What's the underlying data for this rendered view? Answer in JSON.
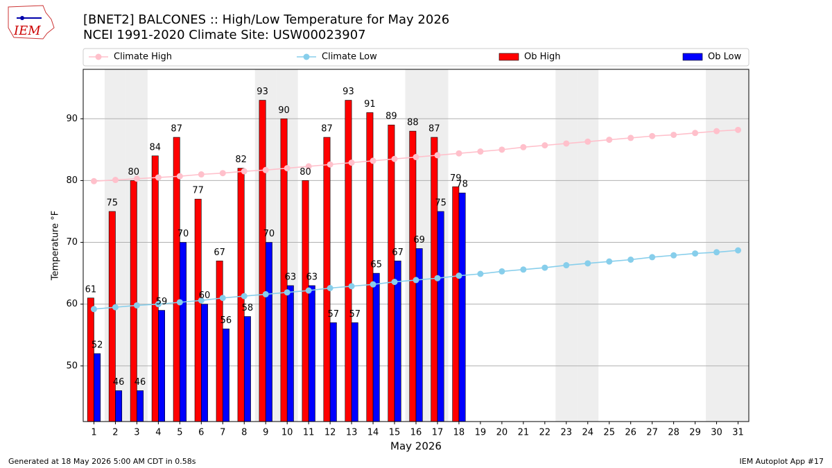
{
  "chart_data": {
    "type": "bar",
    "logo_text": "IEM",
    "title": "[BNET2] BALCONES :: High/Low Temperature for May 2026",
    "subtitle": "NCEI 1991-2020 Climate Site: USW00023907",
    "x_label": "May 2026",
    "y_label": "Temperature °F",
    "footer_left": "Generated at 18 May 2026 5:00 AM CDT in 0.58s",
    "footer_right": "IEM Autoplot App #17",
    "x": [
      1,
      2,
      3,
      4,
      5,
      6,
      7,
      8,
      9,
      10,
      11,
      12,
      13,
      14,
      15,
      16,
      17,
      18,
      19,
      20,
      21,
      22,
      23,
      24,
      25,
      26,
      27,
      28,
      29,
      30,
      31
    ],
    "xlim": [
      0.5,
      31.5
    ],
    "xticks": [
      1,
      2,
      3,
      4,
      5,
      6,
      7,
      8,
      9,
      10,
      11,
      12,
      13,
      14,
      15,
      16,
      17,
      18,
      19,
      20,
      21,
      22,
      23,
      24,
      25,
      26,
      27,
      28,
      29,
      30,
      31
    ],
    "ylim": [
      41,
      98
    ],
    "yticks": [
      50,
      60,
      70,
      80,
      90
    ],
    "grid": true,
    "shaded_days": [
      2,
      3,
      9,
      10,
      16,
      17,
      23,
      24,
      30,
      31
    ],
    "shade_color": "#eeeeee",
    "series": [
      {
        "name": "Climate High",
        "type": "line",
        "color": "#ffc0cb",
        "values": [
          79.9,
          80.1,
          80.3,
          80.5,
          80.7,
          81.0,
          81.2,
          81.5,
          81.7,
          82.0,
          82.3,
          82.6,
          82.9,
          83.2,
          83.5,
          83.8,
          84.1,
          84.4,
          84.7,
          85.0,
          85.4,
          85.7,
          86.0,
          86.3,
          86.6,
          86.9,
          87.2,
          87.4,
          87.7,
          88.0,
          88.2
        ]
      },
      {
        "name": "Climate Low",
        "type": "line",
        "color": "#87ceeb",
        "values": [
          59.2,
          59.5,
          59.8,
          60.0,
          60.3,
          60.6,
          61.0,
          61.3,
          61.6,
          61.9,
          62.2,
          62.6,
          62.9,
          63.2,
          63.6,
          63.9,
          64.2,
          64.6,
          64.9,
          65.3,
          65.6,
          65.9,
          66.3,
          66.6,
          66.9,
          67.2,
          67.6,
          67.9,
          68.2,
          68.4,
          68.7
        ]
      },
      {
        "name": "Ob High",
        "type": "bar",
        "color": "#ff0000",
        "values": [
          61,
          75,
          80,
          84,
          87,
          77,
          67,
          82,
          93,
          90,
          80,
          87,
          93,
          91,
          89,
          88,
          87,
          79,
          null,
          null,
          null,
          null,
          null,
          null,
          null,
          null,
          null,
          null,
          null,
          null,
          null
        ]
      },
      {
        "name": "Ob Low",
        "type": "bar",
        "color": "#0000ff",
        "values": [
          52,
          46,
          46,
          59,
          70,
          60,
          56,
          58,
          70,
          63,
          63,
          57,
          57,
          65,
          67,
          69,
          75,
          78,
          null,
          null,
          null,
          null,
          null,
          null,
          null,
          null,
          null,
          null,
          null,
          null,
          null
        ]
      }
    ]
  }
}
